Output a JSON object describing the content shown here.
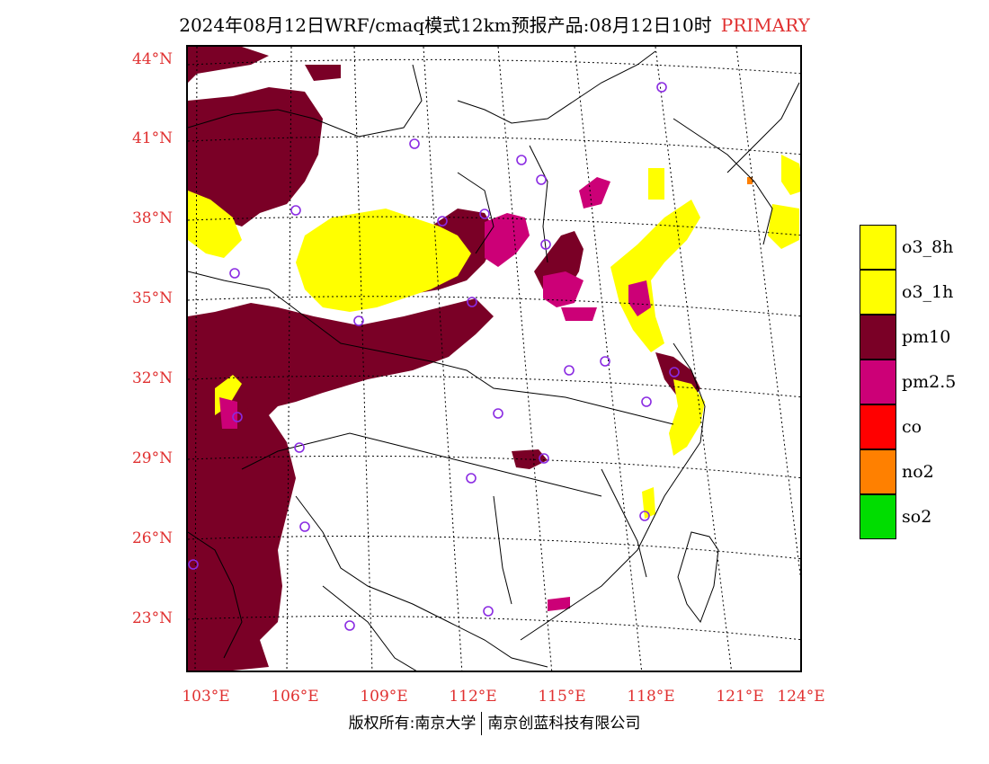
{
  "title": {
    "main": "2024年08月12日WRF/cmaq模式12km预报产品:08月12日10时",
    "tag": "PRIMARY"
  },
  "lat_labels": [
    "44°N",
    "41°N",
    "38°N",
    "35°N",
    "32°N",
    "29°N",
    "26°N",
    "23°N"
  ],
  "lon_labels": [
    "103°E",
    "106°E",
    "109°E",
    "112°E",
    "115°E",
    "118°E",
    "121°E",
    "124°E"
  ],
  "legend": [
    {
      "label": "o3_8h",
      "color": "#ffff00"
    },
    {
      "label": "o3_1h",
      "color": "#ffff00"
    },
    {
      "label": "pm10",
      "color": "#7a0026"
    },
    {
      "label": "pm2.5",
      "color": "#cc0077"
    },
    {
      "label": "co",
      "color": "#ff0000"
    },
    {
      "label": "no2",
      "color": "#ff8000"
    },
    {
      "label": "so2",
      "color": "#00dd00"
    }
  ],
  "footer": {
    "left": "版权所有:南京大学",
    "right": "南京创蓝科技有限公司"
  },
  "colors": {
    "pm10": "#7a0026",
    "pm25": "#cc0077",
    "o3": "#ffff00",
    "no2": "#ff8000",
    "marker": "#8a2be2",
    "label_red": "#e03030"
  }
}
